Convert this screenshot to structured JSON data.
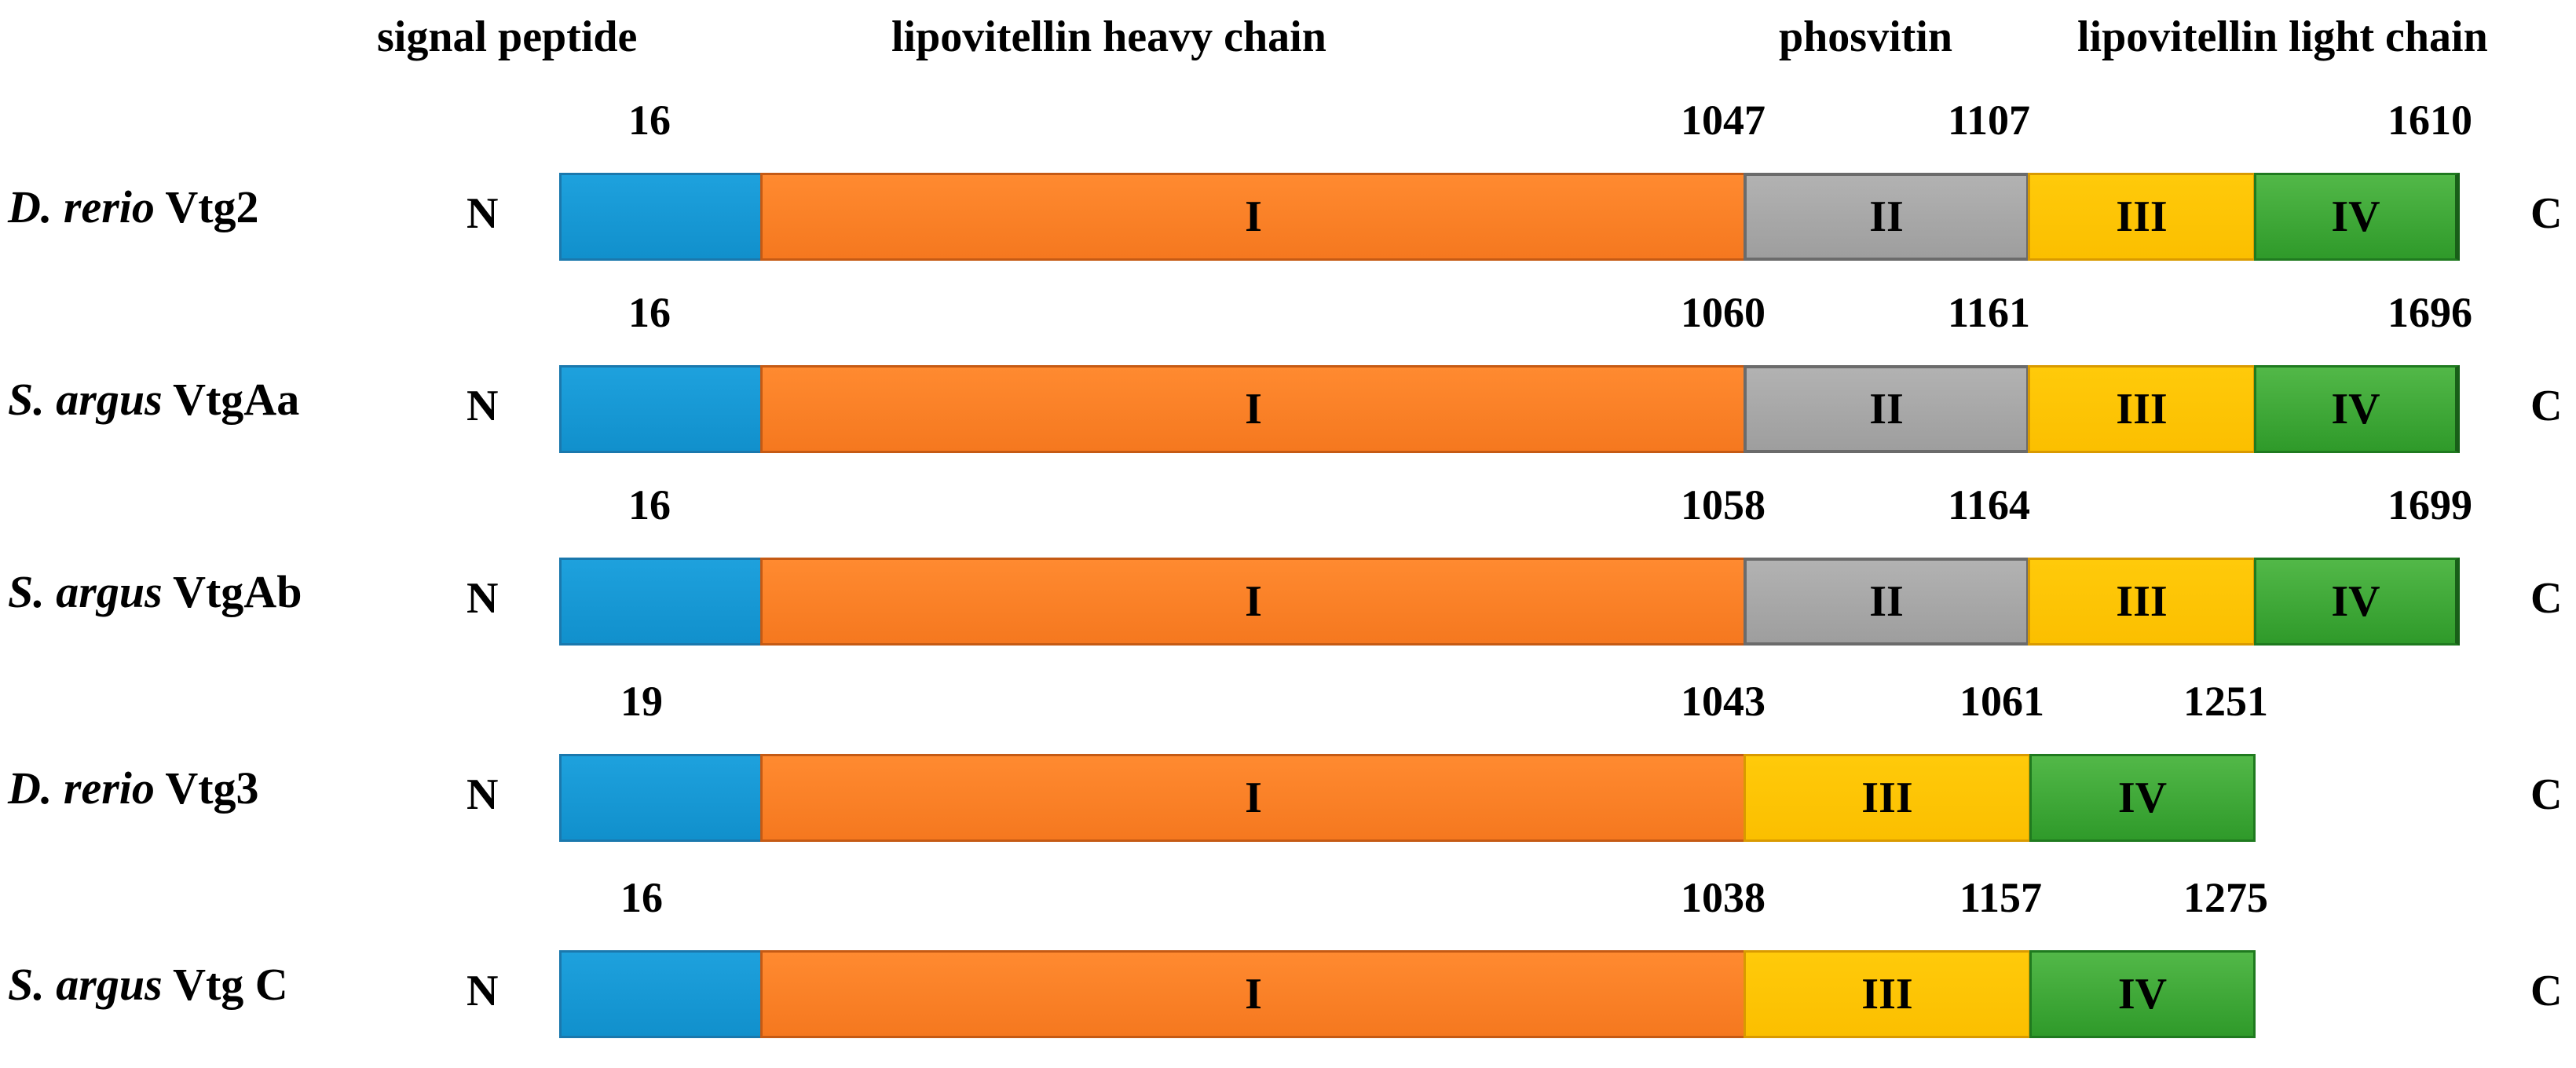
{
  "headers": {
    "signal_peptide": "signal peptide",
    "heavy_chain": "lipovitellin heavy chain",
    "phosvitin": "phosvitin",
    "light_chain": "lipovitellin light chain"
  },
  "terminals": {
    "n": "N",
    "c": "C"
  },
  "domain_labels": {
    "I": "I",
    "II": "II",
    "III": "III",
    "IV": "IV"
  },
  "proteins": [
    {
      "genus": "D. rerio",
      "name": "Vtg2",
      "positions": [
        "16",
        "1047",
        "1107",
        "1610"
      ],
      "has_phosvitin": true
    },
    {
      "genus": "S. argus",
      "name": "VtgAa",
      "positions": [
        "16",
        "1060",
        "1161",
        "1696"
      ],
      "has_phosvitin": true
    },
    {
      "genus": "S. argus",
      "name": "VtgAb",
      "positions": [
        "16",
        "1058",
        "1164",
        "1699"
      ],
      "has_phosvitin": true
    },
    {
      "genus": "D. rerio",
      "name": "Vtg3",
      "positions": [
        "19",
        "1043",
        "1061",
        "1251"
      ],
      "has_phosvitin": false
    },
    {
      "genus": "S. argus",
      "name": "Vtg C",
      "positions": [
        "16",
        "1038",
        "1157",
        "1275"
      ],
      "has_phosvitin": false
    }
  ],
  "colors": {
    "signal_peptide": "#1c9ad6",
    "domain_I": "#f97f26",
    "domain_II": "#a6a6a6",
    "domain_III": "#fcc404",
    "domain_IV": "#41ab3a"
  }
}
